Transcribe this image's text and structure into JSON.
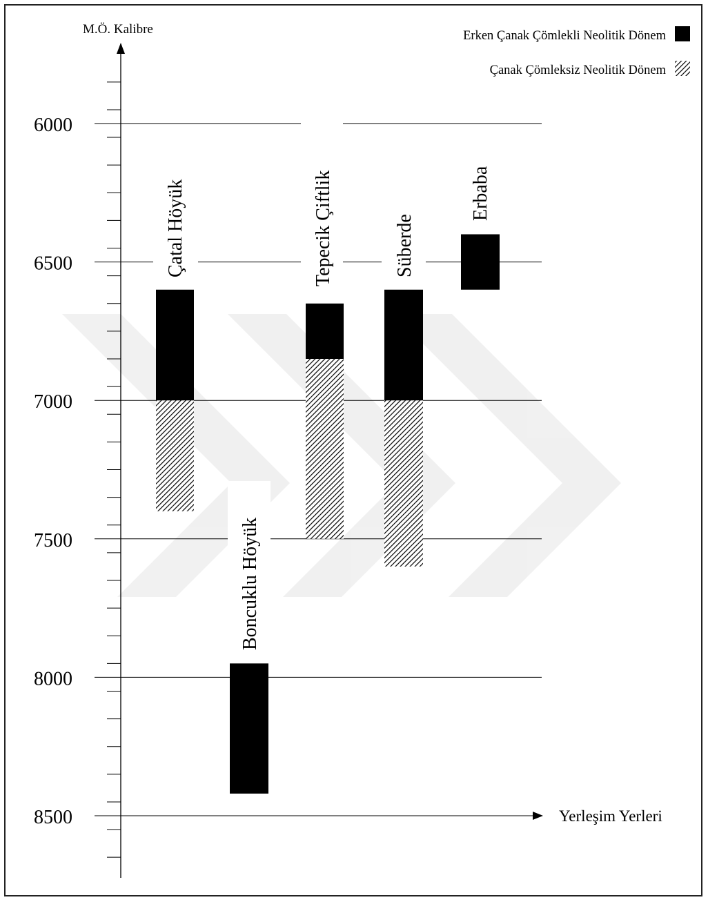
{
  "chart_data": {
    "type": "bar",
    "ylabel": "M.Ö. Kalibre",
    "xlabel": "Yerleşim Yerleri",
    "y_ticks": [
      6000,
      6500,
      7000,
      7500,
      8000,
      8500
    ],
    "ylim": [
      8500,
      5750
    ],
    "y_direction": "inverted",
    "grid": true,
    "legend_position": "top-right",
    "legend": [
      {
        "label": "Erken Çanak Çömlekli Neolitik Dönem",
        "pattern": "solid",
        "color": "#000000"
      },
      {
        "label": "Çanak Çömleksiz Neolitik Dönem",
        "pattern": "hatched",
        "color": "#000000"
      }
    ],
    "sites": [
      {
        "name": "Çatal Höyük",
        "periods": [
          {
            "series": "Erken Çanak Çömlekli Neolitik Dönem",
            "start": 6600,
            "end": 7000
          },
          {
            "series": "Çanak Çömleksiz Neolitik Dönem",
            "start": 7000,
            "end": 7400
          }
        ]
      },
      {
        "name": "Boncuklu Höyük",
        "periods": [
          {
            "series": "Erken Çanak Çömlekli Neolitik Dönem",
            "start": 7950,
            "end": 8420
          }
        ]
      },
      {
        "name": "Tepecik Çiftlik",
        "periods": [
          {
            "series": "Erken Çanak Çömlekli Neolitik Dönem",
            "start": 6650,
            "end": 6850
          },
          {
            "series": "Çanak Çömleksiz Neolitik Dönem",
            "start": 6850,
            "end": 7500
          }
        ]
      },
      {
        "name": "Süberde",
        "periods": [
          {
            "series": "Erken Çanak Çömlekli Neolitik Dönem",
            "start": 6600,
            "end": 7000
          },
          {
            "series": "Çanak Çömleksiz Neolitik Dönem",
            "start": 7000,
            "end": 7600
          }
        ]
      },
      {
        "name": "Erbaba",
        "periods": [
          {
            "series": "Erken Çanak Çömlekli Neolitik Dönem",
            "start": 6400,
            "end": 6600
          }
        ]
      }
    ]
  }
}
